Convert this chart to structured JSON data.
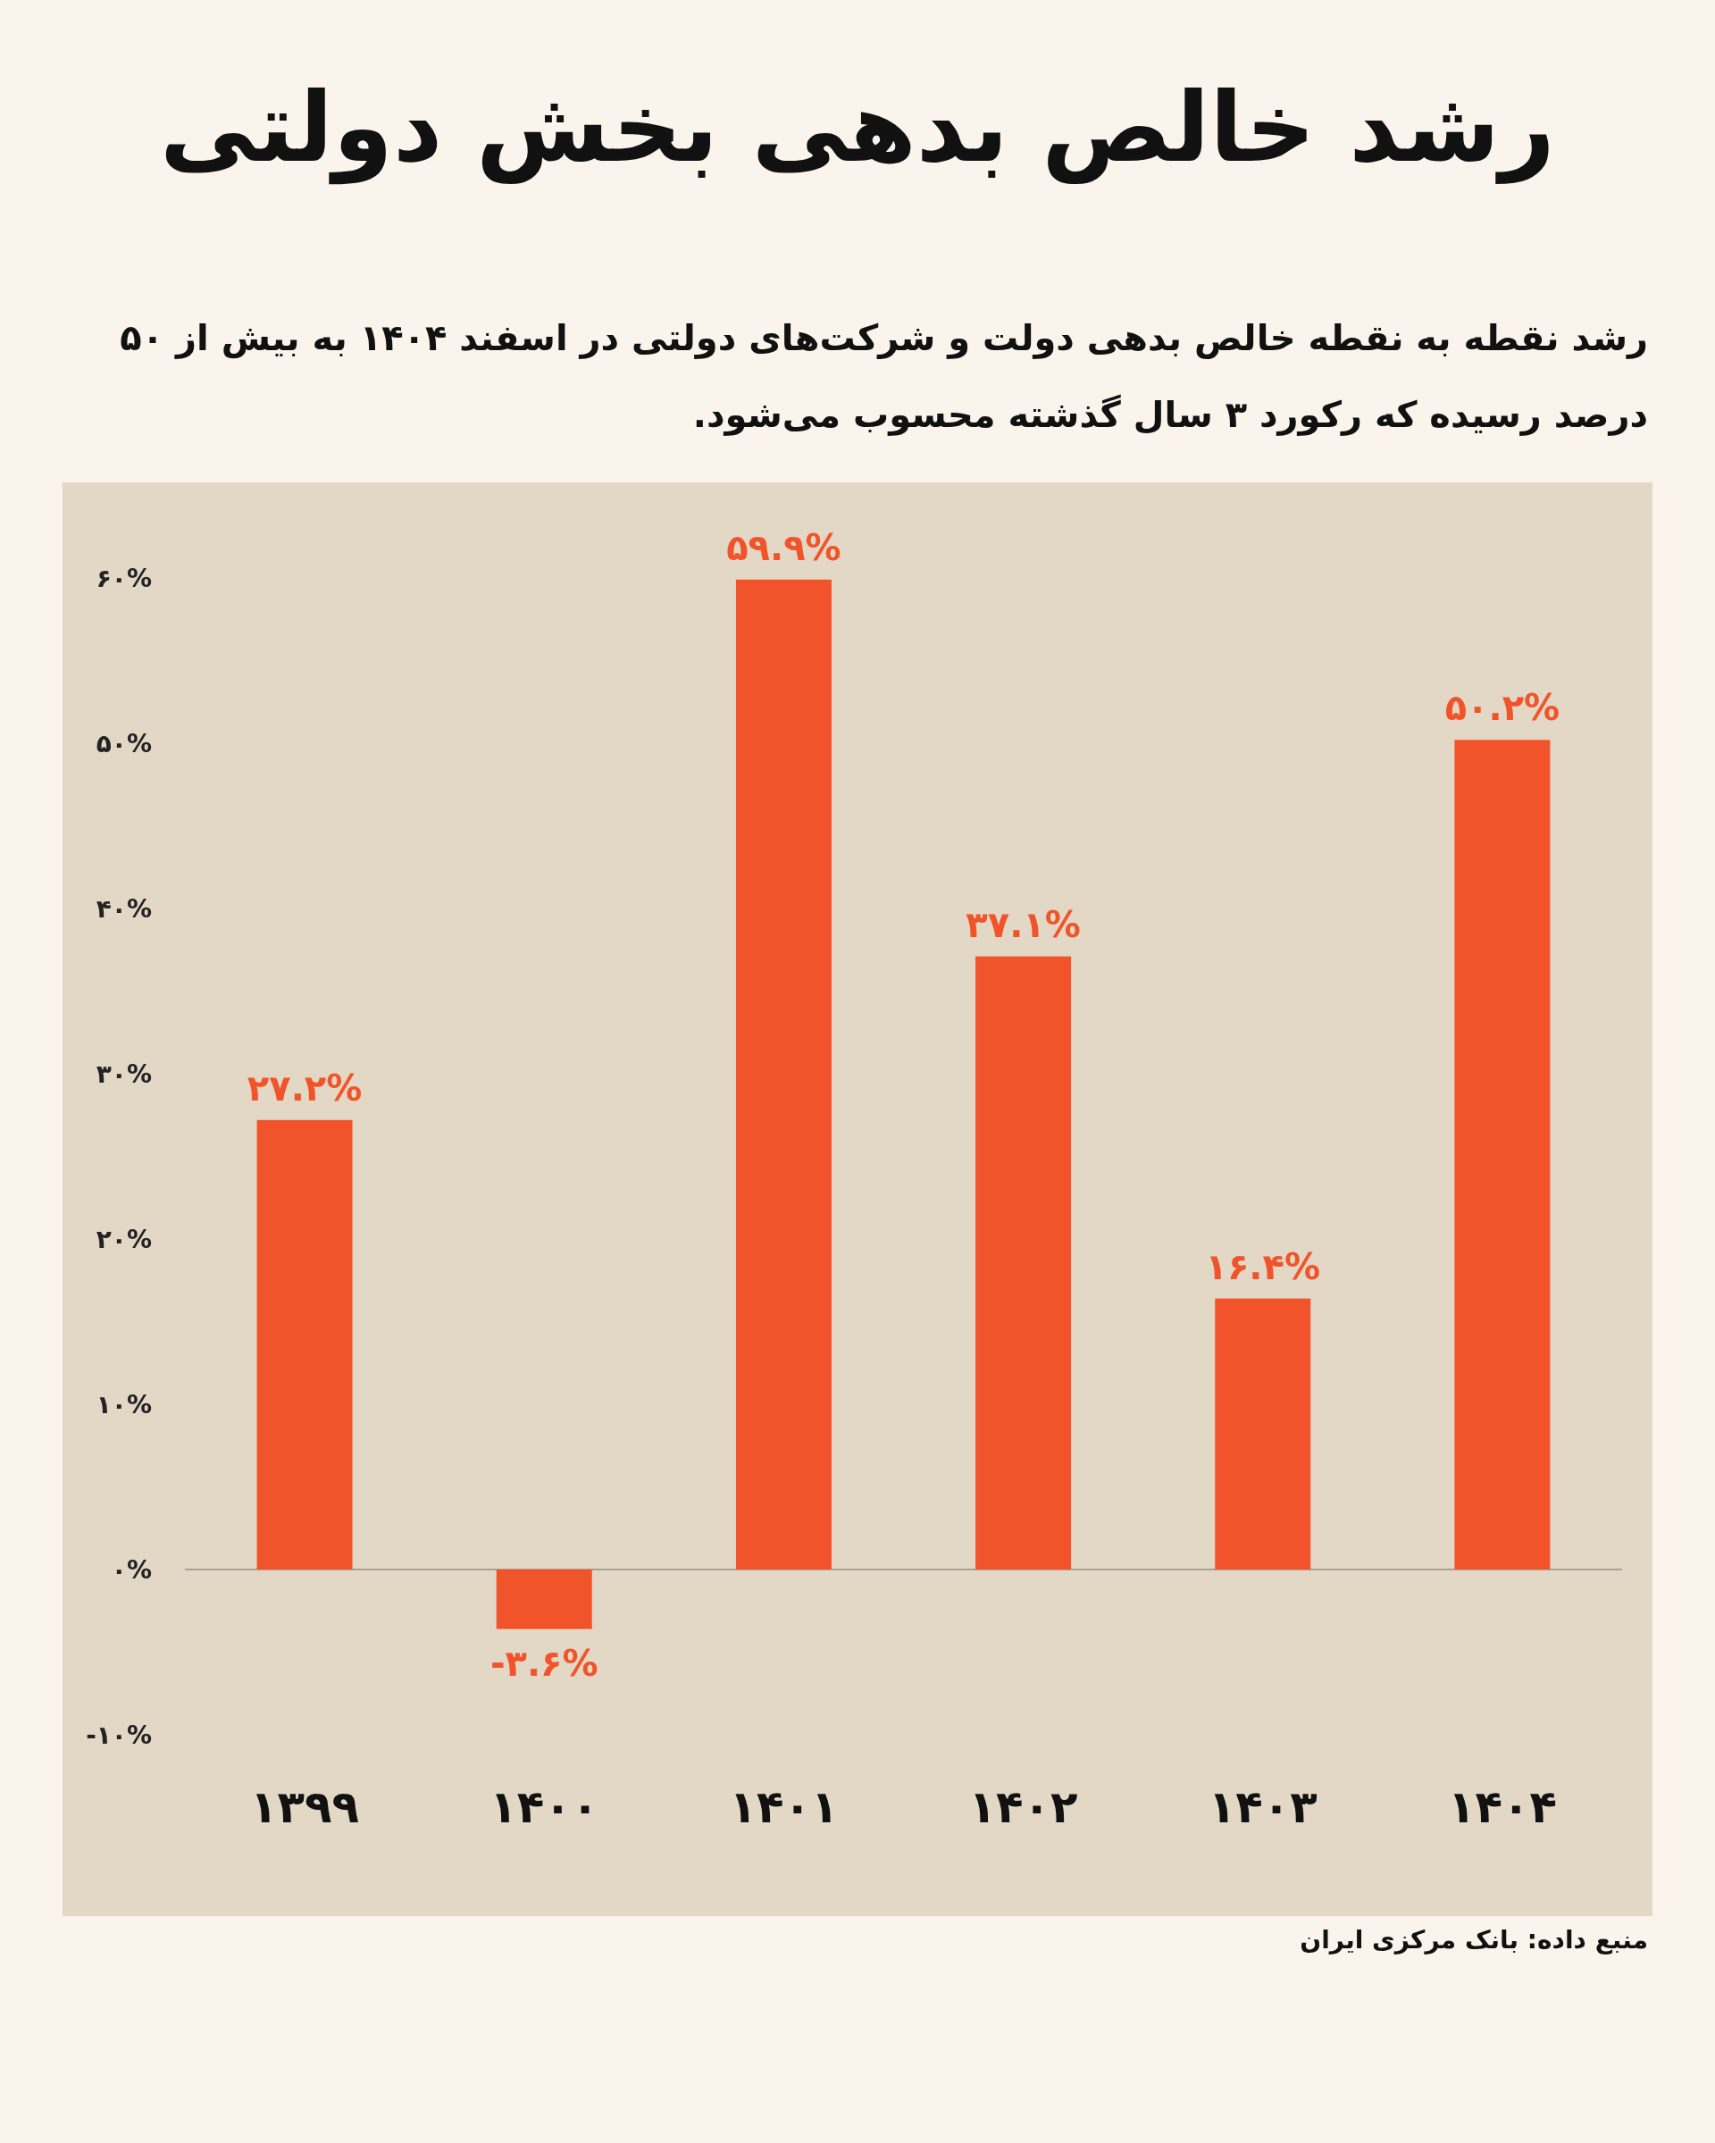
{
  "chart_data": {
    "type": "bar",
    "title": "رشد خالص بدهی بخش دولتی",
    "subtitle": "رشد نقطه به نقطه خالص بدهی دولت و شرکت‌های دولتی در اسفند ۱۴۰۴ به بیش از ۵۰ درصد رسیده که رکورد ۳ سال گذشته محسوب می‌شود.",
    "categories": [
      "۱۳۹۹",
      "۱۴۰۰",
      "۱۴۰۱",
      "۱۴۰۲",
      "۱۴۰۳",
      "۱۴۰۴"
    ],
    "values": [
      27.2,
      -3.6,
      59.9,
      37.1,
      16.4,
      50.2
    ],
    "value_labels": [
      "۲۷.۲%",
      "-۳.۶%",
      "۵۹.۹%",
      "۳۷.۱%",
      "۱۶.۴%",
      "۵۰.۲%"
    ],
    "color": "#f1542b",
    "ylim": [
      -10,
      60
    ],
    "yticks": [
      {
        "value": -10,
        "label": "-۱۰%"
      },
      {
        "value": 0,
        "label": "۰%"
      },
      {
        "value": 10,
        "label": "۱۰%"
      },
      {
        "value": 20,
        "label": "۲۰%"
      },
      {
        "value": 30,
        "label": "۳۰%"
      },
      {
        "value": 40,
        "label": "۴۰%"
      },
      {
        "value": 50,
        "label": "۵۰%"
      },
      {
        "value": 60,
        "label": "۶۰%"
      }
    ],
    "annotations": [
      "منبع داده: بانک مرکزی ایران"
    ]
  }
}
